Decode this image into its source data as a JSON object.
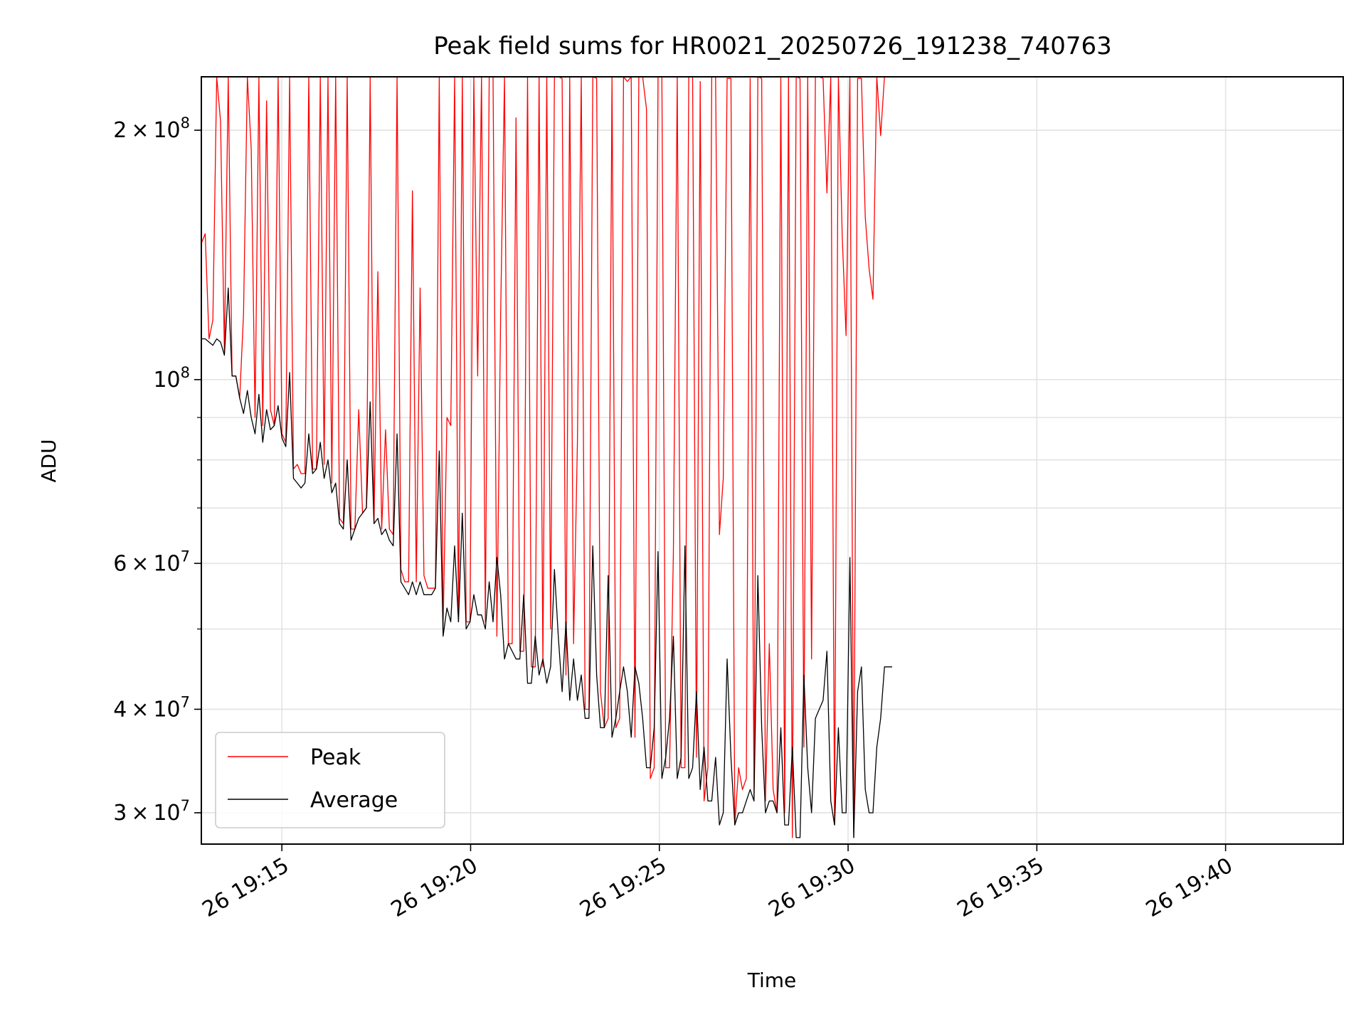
{
  "chart_data": {
    "type": "line",
    "title": "Peak field sums for HR0021_20250726_191238_740763",
    "xlabel": "Time",
    "ylabel": "ADU",
    "y_scale": "log",
    "ylim": [
      27500000,
      232000000
    ],
    "xlim": [
      "2025-07-26 19:12:52",
      "2025-07-26 19:43:07"
    ],
    "x_ticks": [
      {
        "t": "2025-07-26 19:15:00",
        "label": "26 19:15"
      },
      {
        "t": "2025-07-26 19:20:00",
        "label": "26 19:20"
      },
      {
        "t": "2025-07-26 19:25:00",
        "label": "26 19:25"
      },
      {
        "t": "2025-07-26 19:30:00",
        "label": "26 19:30"
      },
      {
        "t": "2025-07-26 19:35:00",
        "label": "26 19:35"
      },
      {
        "t": "2025-07-26 19:40:00",
        "label": "26 19:40"
      }
    ],
    "y_ticks": [
      {
        "v": 30000000,
        "m": "3",
        "e": "7"
      },
      {
        "v": 40000000,
        "m": "4",
        "e": "7"
      },
      {
        "v": 60000000,
        "m": "6",
        "e": "7"
      },
      {
        "v": 100000000,
        "m": "",
        "e": "8"
      },
      {
        "v": 200000000,
        "m": "2",
        "e": "8"
      }
    ],
    "grid": true,
    "legend_position": "lower-left",
    "x_start": "2025-07-26 19:12:52",
    "x_step_seconds": 6.1,
    "series": [
      {
        "name": "Peak",
        "color": "#ff0000",
        "values": [
          146000000,
          150000000,
          112000000,
          118000000,
          232000000,
          205000000,
          108000000,
          232000000,
          101000000,
          101000000,
          95000000,
          120000000,
          232000000,
          190000000,
          90000000,
          232000000,
          88000000,
          217000000,
          92000000,
          88000000,
          232000000,
          86000000,
          84000000,
          232000000,
          78000000,
          79000000,
          77000000,
          77000000,
          232000000,
          78000000,
          78000000,
          232000000,
          79000000,
          232000000,
          75000000,
          232000000,
          68000000,
          67000000,
          232000000,
          66000000,
          66000000,
          92000000,
          69000000,
          70000000,
          232000000,
          67000000,
          135000000,
          66000000,
          87000000,
          66000000,
          65000000,
          232000000,
          59000000,
          57000000,
          57000000,
          169000000,
          57000000,
          129000000,
          58000000,
          56000000,
          56000000,
          56000000,
          232000000,
          50000000,
          90000000,
          88000000,
          232000000,
          51000000,
          232000000,
          51000000,
          51000000,
          232000000,
          101000000,
          232000000,
          51000000,
          232000000,
          232000000,
          49000000,
          120000000,
          232000000,
          48000000,
          48000000,
          207000000,
          47000000,
          47000000,
          232000000,
          45000000,
          45000000,
          232000000,
          45000000,
          232000000,
          50000000,
          232000000,
          232000000,
          231000000,
          44000000,
          232000000,
          48000000,
          84000000,
          232000000,
          40000000,
          40000000,
          232000000,
          231000000,
          42000000,
          38000000,
          39000000,
          232000000,
          38000000,
          39000000,
          232000000,
          229000000,
          232000000,
          37000000,
          232000000,
          232000000,
          212000000,
          33000000,
          34000000,
          232000000,
          232000000,
          34000000,
          34000000,
          62000000,
          232000000,
          34000000,
          34000000,
          232000000,
          232000000,
          35000000,
          229000000,
          31000000,
          34000000,
          232000000,
          232000000,
          65000000,
          76000000,
          231000000,
          231000000,
          29000000,
          34000000,
          32000000,
          33000000,
          231000000,
          31000000,
          232000000,
          231000000,
          31000000,
          48000000,
          32000000,
          30000000,
          232000000,
          30000000,
          232000000,
          28000000,
          232000000,
          231000000,
          36000000,
          232000000,
          46000000,
          232000000,
          232000000,
          231000000,
          168000000,
          232000000,
          29000000,
          232000000,
          149000000,
          113000000,
          232000000,
          28000000,
          231000000,
          231000000,
          157000000,
          136000000,
          125000000,
          232000000,
          197000000,
          232000000,
          232000000
        ]
      },
      {
        "name": "Average",
        "color": "#000000",
        "values": [
          112000000,
          112000000,
          111000000,
          110000000,
          112000000,
          111000000,
          107000000,
          129000000,
          101000000,
          101000000,
          95000000,
          91000000,
          97000000,
          90000000,
          86000000,
          96000000,
          84000000,
          92000000,
          87000000,
          88000000,
          93000000,
          85000000,
          83000000,
          102000000,
          76000000,
          75000000,
          74000000,
          75000000,
          86000000,
          77000000,
          78000000,
          84000000,
          76000000,
          80000000,
          73000000,
          75000000,
          67000000,
          66000000,
          80000000,
          64000000,
          66000000,
          68000000,
          69000000,
          70000000,
          94000000,
          67000000,
          68000000,
          65000000,
          66000000,
          64000000,
          63000000,
          86000000,
          57000000,
          56000000,
          55000000,
          57000000,
          55000000,
          57000000,
          55000000,
          55000000,
          55000000,
          56000000,
          82000000,
          49000000,
          53000000,
          51000000,
          63000000,
          51000000,
          69000000,
          50000000,
          51000000,
          55000000,
          52000000,
          52000000,
          50000000,
          57000000,
          51000000,
          61000000,
          55000000,
          46000000,
          48000000,
          47000000,
          46000000,
          46000000,
          55000000,
          43000000,
          43000000,
          49000000,
          44000000,
          46000000,
          43000000,
          45000000,
          59000000,
          49000000,
          42000000,
          51000000,
          41000000,
          46000000,
          41000000,
          44000000,
          39000000,
          39000000,
          63000000,
          44000000,
          38000000,
          38000000,
          58000000,
          37000000,
          39000000,
          42000000,
          45000000,
          42000000,
          37000000,
          45000000,
          43000000,
          39000000,
          34000000,
          34000000,
          38000000,
          62000000,
          33000000,
          35000000,
          39000000,
          49000000,
          33000000,
          35000000,
          63000000,
          33000000,
          34000000,
          42000000,
          32000000,
          36000000,
          31000000,
          31000000,
          35000000,
          29000000,
          30000000,
          46000000,
          35000000,
          29000000,
          30000000,
          30000000,
          31000000,
          32000000,
          31000000,
          58000000,
          38000000,
          30000000,
          31000000,
          31000000,
          30000000,
          38000000,
          29000000,
          29000000,
          36000000,
          28000000,
          28000000,
          44000000,
          34000000,
          30000000,
          39000000,
          40000000,
          41000000,
          47000000,
          31000000,
          29000000,
          38000000,
          30000000,
          30000000,
          61000000,
          28000000,
          42000000,
          45000000,
          32000000,
          30000000,
          30000000,
          36000000,
          39000000,
          45000000,
          45000000,
          45000000
        ]
      }
    ]
  }
}
